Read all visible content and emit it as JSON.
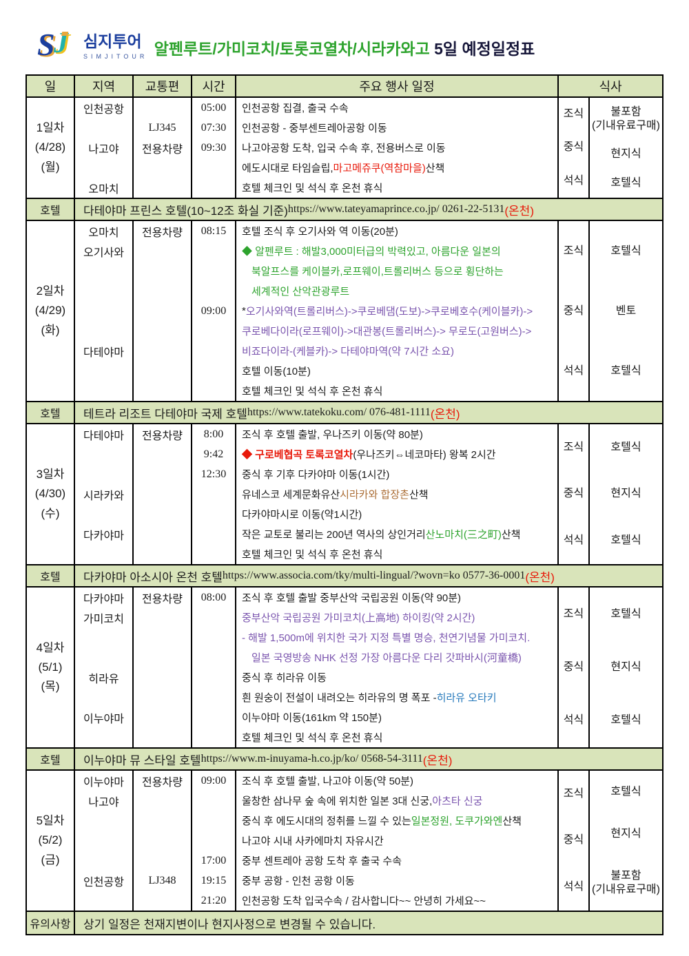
{
  "colors": {
    "k": "#1b1b1b",
    "red": "#e8190a",
    "green": "#2da32d",
    "purple": "#7a54ae",
    "orange": "#ab6d35",
    "blue": "#2478bb",
    "band": "#d9e4ba",
    "navy": "#1c3f9e"
  },
  "logo": {
    "brand": "심지투어",
    "sub": "SIMJITOUR"
  },
  "title": {
    "green": "알펜루트/가미코치/토롯코열차/시라카와고",
    "black": " 5일 예정일정표"
  },
  "columns": {
    "day": "일",
    "region": "지역",
    "transport": "교통편",
    "time": "시간",
    "events": "주요 행사 일정",
    "meal": "식사"
  },
  "days": [
    {
      "day": [
        "1일차",
        "(4/28)",
        "(월)"
      ],
      "lines": [
        {
          "r": "인천공항",
          "tr": "",
          "t": "05:00",
          "s": [
            [
              "k",
              "인천공항 집결, 출국 수속"
            ]
          ]
        },
        {
          "r": "",
          "tr": "LJ345",
          "t": "07:30",
          "s": [
            [
              "k",
              "인천공항 - 중부센트레아공항 이동"
            ]
          ]
        },
        {
          "r": "나고야",
          "tr": "전용차량",
          "t": "09:30",
          "s": [
            [
              "k",
              "나고야공항 도착, 입국 수속 후, 전용버스로 이동"
            ]
          ]
        },
        {
          "r": "",
          "tr": "",
          "t": "",
          "s": [
            [
              "k",
              "에도시대로 타임슬립, "
            ],
            [
              "red",
              "마고메쥬쿠(역참마을)"
            ],
            [
              "k",
              " 산책"
            ]
          ]
        },
        {
          "r": "오마치",
          "tr": "",
          "t": "",
          "s": [
            [
              "k",
              "호텔 체크인 및 석식 후 온천 휴식"
            ]
          ]
        }
      ],
      "meals": [
        [
          "조식",
          "불포함\n(기내유료구매)"
        ],
        [
          "중식",
          "현지식"
        ],
        [
          "석식",
          "호텔식"
        ]
      ],
      "hotel": {
        "label": "호텔",
        "name": "다테야마 프린스 호텔(10~12조 화실 기준) ",
        "url": "https://www.tateyamaprince.co.jp/ 0261-22-5131",
        "onsen": "(온천)"
      }
    },
    {
      "day": [
        "2일차",
        "(4/29)",
        "(화)"
      ],
      "lines": [
        {
          "r": "오마치",
          "tr": "전용차량",
          "t": "08:15",
          "s": [
            [
              "k",
              "호텔 조식 후 오기사와 역 이동(20분)"
            ]
          ]
        },
        {
          "r": "오기사와",
          "tr": "",
          "t": "",
          "s": [
            [
              "green",
              "◆ 알펜루트 : 해발3,000미터급의 박력있고, 아름다운 일본의"
            ]
          ]
        },
        {
          "r": "",
          "tr": "",
          "t": "",
          "i": 1,
          "s": [
            [
              "green",
              "북알프스를 케이블카,로프웨이,트롤리버스 등으로 횡단하는"
            ]
          ]
        },
        {
          "r": "",
          "tr": "",
          "t": "",
          "i": 1,
          "s": [
            [
              "green",
              "세계적인 산악관광루트"
            ]
          ]
        },
        {
          "r": "",
          "tr": "",
          "t": "09:00",
          "s": [
            [
              "k",
              "* "
            ],
            [
              "purple",
              "오기사와역(트롤리버스)->쿠로베댐(도보)->쿠로베호수(케이블카)->"
            ]
          ]
        },
        {
          "r": "",
          "tr": "",
          "t": "",
          "s": [
            [
              "purple",
              "쿠로베다이라(로프웨이)->대관봉(트롤리버스)-> 무로도(고원버스)->"
            ]
          ]
        },
        {
          "r": "다테야마",
          "tr": "",
          "t": "",
          "s": [
            [
              "purple",
              "비죠다이라-(케블카)-> 다테야마역(약 7시간 소요)"
            ]
          ]
        },
        {
          "r": "",
          "tr": "",
          "t": "",
          "s": [
            [
              "k",
              "호텔 이동(10분)"
            ]
          ]
        },
        {
          "r": "",
          "tr": "",
          "t": "",
          "s": [
            [
              "k",
              "호텔 체크인 및 석식 후 온천 휴식"
            ]
          ]
        }
      ],
      "meals": [
        [
          "조식",
          "호텔식"
        ],
        [
          "중식",
          "벤토"
        ],
        [
          "석식",
          "호텔식"
        ]
      ],
      "hotel": {
        "label": "호텔",
        "name": "테트라 리조트 다테야마 국제 호텔 ",
        "url": "https://www.tatekoku.com/ 076-481-1111 ",
        "onsen": "(온천)"
      }
    },
    {
      "day": [
        "3일차",
        "(4/30)",
        "(수)"
      ],
      "lines": [
        {
          "r": "다테야마",
          "tr": "전용차량",
          "t": "8:00",
          "s": [
            [
              "k",
              "조식 후 호텔 출발, 우나즈키 이동(약 80분)"
            ]
          ]
        },
        {
          "r": "",
          "tr": "",
          "t": "9:42",
          "s": [
            [
              "red",
              "◆ 구로베협곡 토록코열차",
              true
            ],
            [
              "k",
              " (우나즈키⇔네코마타) 왕복 2시간"
            ]
          ]
        },
        {
          "r": "",
          "tr": "",
          "t": "12:30",
          "s": [
            [
              "k",
              "중식 후 기후 다카야마 이동(1시간)"
            ]
          ]
        },
        {
          "r": "시라카와",
          "tr": "",
          "t": "",
          "s": [
            [
              "k",
              "유네스코 세계문화유산 "
            ],
            [
              "orange",
              "시라카와 합장촌"
            ],
            [
              "k",
              " 산책"
            ]
          ]
        },
        {
          "r": "",
          "tr": "",
          "t": "",
          "s": [
            [
              "k",
              "다카야마시로 이동(약1시간)"
            ]
          ]
        },
        {
          "r": "다카야마",
          "tr": "",
          "t": "",
          "s": [
            [
              "k",
              "작은 교토로 불리는 200년 역사의 상인거리 "
            ],
            [
              "green",
              "산노마치(三之町)"
            ],
            [
              "k",
              " 산책"
            ]
          ]
        },
        {
          "r": "",
          "tr": "",
          "t": "",
          "s": [
            [
              "k",
              "호텔 체크인 및 석식 후 온천 휴식"
            ]
          ]
        }
      ],
      "meals": [
        [
          "조식",
          "호텔식"
        ],
        [
          "중식",
          "현지식"
        ],
        [
          "석식",
          "호텔식"
        ]
      ],
      "hotel": {
        "label": "호텔",
        "name": "다카야마 아소시아 온천 호텔 ",
        "url": "https://www.associa.com/tky/multi-lingual/?wovn=ko 0577-36-0001 ",
        "onsen": "(온천)"
      }
    },
    {
      "day": [
        "4일차",
        "(5/1)",
        "(목)"
      ],
      "lines": [
        {
          "r": "다카야마",
          "tr": "전용차량",
          "t": "08:00",
          "s": [
            [
              "k",
              "조식 후 호텔 출발 중부산악 국립공원 이동(약 90분)"
            ]
          ]
        },
        {
          "r": "가미코치",
          "tr": "",
          "t": "",
          "s": [
            [
              "purple",
              "중부산악 국립공원 가미코치(上高地) 하이킹(약 2시간)"
            ]
          ]
        },
        {
          "r": "",
          "tr": "",
          "t": "",
          "s": [
            [
              "purple",
              "- 해발 1,500m에 위치한 국가 지정 특별 명승, 천연기념물 가미코치."
            ]
          ]
        },
        {
          "r": "",
          "tr": "",
          "t": "",
          "i": 1,
          "s": [
            [
              "purple",
              "일본 국영방송 NHK 선정 가장 아름다운 다리 갓파바시(河童橋)"
            ]
          ]
        },
        {
          "r": "히라유",
          "tr": "",
          "t": "",
          "s": [
            [
              "k",
              "중식 후 히라유 이동"
            ]
          ]
        },
        {
          "r": "",
          "tr": "",
          "t": "",
          "s": [
            [
              "k",
              "흰 원숭이 전설이 내려오는 히라유의 명 폭포 - "
            ],
            [
              "blue",
              "히라유 오타키"
            ]
          ]
        },
        {
          "r": "이누야마",
          "tr": "",
          "t": "",
          "s": [
            [
              "k",
              "이누야마 이동(161km 약 150분)"
            ]
          ]
        },
        {
          "r": "",
          "tr": "",
          "t": "",
          "s": [
            [
              "k",
              "호텔 체크인 및 석식 후 온천 휴식"
            ]
          ]
        }
      ],
      "meals": [
        [
          "조식",
          "호텔식"
        ],
        [
          "중식",
          "현지식"
        ],
        [
          "석식",
          "호텔식"
        ]
      ],
      "hotel": {
        "label": "호텔",
        "name": "이누야마 뮤 스타일 호텔 ",
        "url": "https://www.m-inuyama-h.co.jp/ko/ 0568-54-3111 ",
        "onsen": "(온천)"
      }
    },
    {
      "day": [
        "5일차",
        "(5/2)",
        "(금)"
      ],
      "lines": [
        {
          "r": "이누야마",
          "tr": "전용차량",
          "t": "09:00",
          "s": [
            [
              "k",
              "조식 후 호텔 출발, 나고야 이동(약 50분)"
            ]
          ]
        },
        {
          "r": "나고야",
          "tr": "",
          "t": "",
          "s": [
            [
              "k",
              "울창한 삼나무 숲 속에 위치한 일본 3대 신궁, "
            ],
            [
              "purple",
              "아츠타 신궁"
            ]
          ]
        },
        {
          "r": "",
          "tr": "",
          "t": "",
          "s": [
            [
              "k",
              "중식 후 에도시대의 정취를 느낄 수 있는 "
            ],
            [
              "green",
              "일본정원, 도쿠가와엔"
            ],
            [
              "k",
              " 산책"
            ]
          ]
        },
        {
          "r": "",
          "tr": "",
          "t": "",
          "s": [
            [
              "k",
              "나고야 시내 사카에마치 자유시간"
            ]
          ]
        },
        {
          "r": "",
          "tr": "",
          "t": "17:00",
          "s": [
            [
              "k",
              "중부 센트레아 공항 도착 후 출국 수속"
            ]
          ]
        },
        {
          "r": "인천공항",
          "tr": "LJ348",
          "t": "19:15",
          "s": [
            [
              "k",
              "중부 공항 - 인천 공항 이동"
            ]
          ]
        },
        {
          "r": "",
          "tr": "",
          "t": "21:20",
          "s": [
            [
              "k",
              "인천공항 도착 입국수속 / 감사합니다~~ 안녕히 가세요~~"
            ]
          ]
        }
      ],
      "meals": [
        [
          "조식",
          "호텔식"
        ],
        [
          "중식",
          "현지식"
        ],
        [
          "석식",
          "불포함\n(기내유료구매)"
        ]
      ]
    }
  ],
  "notice": {
    "label": "유의사항",
    "text": "상기 일정은 천재지변이나 현지사정으로 변경될 수 있습니다."
  }
}
